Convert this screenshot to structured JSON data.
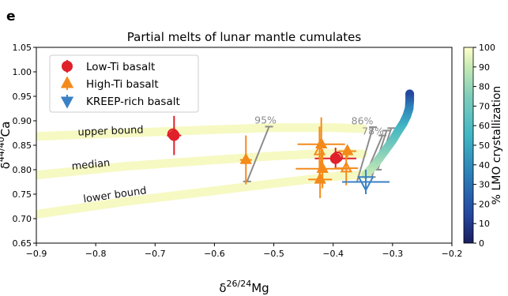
{
  "panel_label": "e",
  "chart_data": {
    "type": "scatter",
    "title": "Partial melts of lunar mantle cumulates",
    "xlabel_base": "δ",
    "xlabel_sup": "26/24",
    "xlabel_tail": "Mg",
    "ylabel_base": "δ",
    "ylabel_sup": "44/40",
    "ylabel_tail": "Ca",
    "xlim": [
      -0.9,
      -0.2
    ],
    "ylim": [
      0.65,
      1.05
    ],
    "xticks": [
      -0.9,
      -0.8,
      -0.7,
      -0.6,
      -0.5,
      -0.4,
      -0.3,
      -0.2
    ],
    "yticks": [
      0.65,
      0.7,
      0.75,
      0.8,
      0.85,
      0.9,
      0.95,
      1.0,
      1.05
    ],
    "xtick_labels": [
      "−0.9",
      "−0.8",
      "−0.7",
      "−0.6",
      "−0.5",
      "−0.4",
      "−0.3",
      "−0.2"
    ],
    "ytick_labels": [
      "0.65",
      "0.70",
      "0.75",
      "0.80",
      "0.85",
      "0.90",
      "0.95",
      "1.00",
      "1.05"
    ],
    "bands": [
      {
        "label": "upper bound",
        "x": [
          -0.9,
          -0.75,
          -0.6,
          -0.5,
          -0.4,
          -0.35
        ],
        "y": [
          0.868,
          0.875,
          0.882,
          0.886,
          0.886,
          0.884
        ],
        "label_at": [
          -0.83,
          0.87
        ]
      },
      {
        "label": "median",
        "x": [
          -0.9,
          -0.75,
          -0.6,
          -0.5,
          -0.4,
          -0.35
        ],
        "y": [
          0.789,
          0.807,
          0.82,
          0.828,
          0.834,
          0.832
        ],
        "label_at": [
          -0.84,
          0.8
        ]
      },
      {
        "label": "lower bound",
        "x": [
          -0.9,
          -0.75,
          -0.6,
          -0.5,
          -0.4,
          -0.35
        ],
        "y": [
          0.709,
          0.735,
          0.757,
          0.772,
          0.786,
          0.79
        ],
        "label_at": [
          -0.82,
          0.733
        ]
      }
    ],
    "crystallization_curve": {
      "x": [
        -0.345,
        -0.33,
        -0.315,
        -0.3,
        -0.29,
        -0.282,
        -0.276,
        -0.272,
        -0.271,
        -0.271
      ],
      "y": [
        0.79,
        0.81,
        0.835,
        0.86,
        0.88,
        0.895,
        0.91,
        0.925,
        0.942,
        0.955
      ],
      "colorbar_label": "% LMO crystallization",
      "colorbar_ticks": [
        0,
        10,
        20,
        30,
        40,
        50,
        60,
        70,
        80,
        90,
        100
      ],
      "colorbar_tick_labels": [
        "0",
        "10",
        "20",
        "30",
        "40",
        "50",
        "60",
        "70",
        "80",
        "90",
        "100"
      ]
    },
    "tie_lines": [
      {
        "label": "95%",
        "x": [
          -0.545,
          -0.508
        ],
        "y": [
          0.776,
          0.888
        ],
        "label_at": [
          -0.514,
          0.894
        ]
      },
      {
        "label": "86%",
        "x": [
          -0.36,
          -0.333
        ],
        "y": [
          0.775,
          0.887
        ],
        "label_at": [
          -0.351,
          0.893
        ]
      },
      {
        "label": "78%",
        "x": [
          -0.345,
          -0.317
        ],
        "y": [
          0.79,
          0.87
        ],
        "label_at": [
          -0.333,
          0.872
        ]
      },
      {
        "label": "",
        "x": [
          -0.335,
          -0.31
        ],
        "y": [
          0.785,
          0.88
        ],
        "label_at": null
      },
      {
        "label": "",
        "x": [
          -0.325,
          -0.302
        ],
        "y": [
          0.8,
          0.885
        ],
        "label_at": null
      }
    ],
    "series": [
      {
        "name": "Low-Ti basalt",
        "color": "#e0202a",
        "marker": "circle",
        "points": [
          {
            "x": -0.668,
            "y": 0.87,
            "xerr": 0.012,
            "yerr": 0.04,
            "filled": true
          },
          {
            "x": -0.67,
            "y": 0.873,
            "xerr": 0.0,
            "yerr": 0.0,
            "filled": false
          },
          {
            "x": -0.396,
            "y": 0.823,
            "xerr": 0.035,
            "yerr": 0.022,
            "filled": true
          },
          {
            "x": -0.393,
            "y": 0.826,
            "xerr": 0.0,
            "yerr": 0.0,
            "filled": false
          }
        ]
      },
      {
        "name": "High-Ti basalt",
        "color": "#f48a1a",
        "marker": "triangle-up",
        "points": [
          {
            "x": -0.547,
            "y": 0.82,
            "xerr": 0.01,
            "yerr": 0.05,
            "filled": true
          },
          {
            "x": -0.42,
            "y": 0.852,
            "xerr": 0.04,
            "yerr": 0.055,
            "filled": true
          },
          {
            "x": -0.423,
            "y": 0.838,
            "xerr": 0.0,
            "yerr": 0.05,
            "filled": false
          },
          {
            "x": -0.418,
            "y": 0.802,
            "xerr": 0.045,
            "yerr": 0.04,
            "filled": true
          },
          {
            "x": -0.422,
            "y": 0.78,
            "xerr": 0.02,
            "yerr": 0.038,
            "filled": true
          },
          {
            "x": -0.376,
            "y": 0.838,
            "xerr": 0.015,
            "yerr": 0.012,
            "filled": true
          },
          {
            "x": -0.378,
            "y": 0.803,
            "xerr": 0.02,
            "yerr": 0.035,
            "filled": false
          }
        ]
      },
      {
        "name": "KREEP-rich basalt",
        "color": "#3a82c4",
        "marker": "triangle-down",
        "points": [
          {
            "x": -0.345,
            "y": 0.775,
            "xerr": 0.04,
            "yerr": 0.025,
            "filled": false
          }
        ]
      }
    ],
    "legend_placement": "top-left",
    "grid": false
  }
}
